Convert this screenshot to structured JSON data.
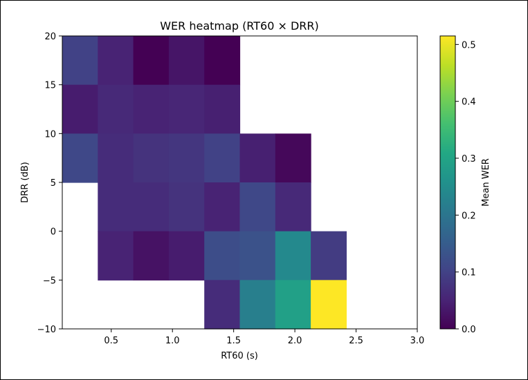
{
  "chart_data": {
    "type": "heatmap",
    "title": "WER heatmap (RT60 × DRR)",
    "xlabel": "RT60 (s)",
    "ylabel": "DRR (dB)",
    "colorbar_label": "Mean WER",
    "colormap": "viridis",
    "xlim": [
      0.1,
      3.0
    ],
    "ylim": [
      -10,
      20
    ],
    "clim": [
      0.0,
      0.515
    ],
    "x_ticks": [
      0.5,
      1.0,
      1.5,
      2.0,
      2.5,
      3.0
    ],
    "x_tick_labels": [
      "0.5",
      "1.0",
      "1.5",
      "2.0",
      "2.5",
      "3.0"
    ],
    "y_ticks": [
      -10,
      -5,
      0,
      5,
      10,
      15,
      20
    ],
    "y_tick_labels": [
      "−10",
      "−5",
      "0",
      "5",
      "10",
      "15",
      "20"
    ],
    "colorbar_ticks": [
      0.0,
      0.1,
      0.2,
      0.3,
      0.4,
      0.5
    ],
    "colorbar_tick_labels": [
      "0.0",
      "0.1",
      "0.2",
      "0.3",
      "0.4",
      "0.5"
    ],
    "x_bin_edges": [
      0.1,
      0.39,
      0.68,
      0.97,
      1.26,
      1.55,
      1.84,
      2.13,
      2.42,
      2.71,
      3.0
    ],
    "y_bin_edges": [
      -10,
      -5,
      0,
      5,
      10,
      15,
      20
    ],
    "cells": [
      {
        "x_bin": 0,
        "y_bin": 5,
        "value": 0.1
      },
      {
        "x_bin": 1,
        "y_bin": 5,
        "value": 0.05
      },
      {
        "x_bin": 2,
        "y_bin": 5,
        "value": 0.0
      },
      {
        "x_bin": 3,
        "y_bin": 5,
        "value": 0.03
      },
      {
        "x_bin": 4,
        "y_bin": 5,
        "value": 0.0
      },
      {
        "x_bin": 0,
        "y_bin": 4,
        "value": 0.04
      },
      {
        "x_bin": 1,
        "y_bin": 4,
        "value": 0.06
      },
      {
        "x_bin": 2,
        "y_bin": 4,
        "value": 0.05
      },
      {
        "x_bin": 3,
        "y_bin": 4,
        "value": 0.055
      },
      {
        "x_bin": 4,
        "y_bin": 4,
        "value": 0.045
      },
      {
        "x_bin": 0,
        "y_bin": 3,
        "value": 0.11
      },
      {
        "x_bin": 1,
        "y_bin": 3,
        "value": 0.065
      },
      {
        "x_bin": 2,
        "y_bin": 3,
        "value": 0.075
      },
      {
        "x_bin": 3,
        "y_bin": 3,
        "value": 0.08
      },
      {
        "x_bin": 4,
        "y_bin": 3,
        "value": 0.1
      },
      {
        "x_bin": 5,
        "y_bin": 3,
        "value": 0.045
      },
      {
        "x_bin": 6,
        "y_bin": 3,
        "value": 0.01
      },
      {
        "x_bin": 1,
        "y_bin": 2,
        "value": 0.065
      },
      {
        "x_bin": 2,
        "y_bin": 2,
        "value": 0.065
      },
      {
        "x_bin": 3,
        "y_bin": 2,
        "value": 0.075
      },
      {
        "x_bin": 4,
        "y_bin": 2,
        "value": 0.05
      },
      {
        "x_bin": 5,
        "y_bin": 2,
        "value": 0.11
      },
      {
        "x_bin": 6,
        "y_bin": 2,
        "value": 0.06
      },
      {
        "x_bin": 1,
        "y_bin": 1,
        "value": 0.05
      },
      {
        "x_bin": 2,
        "y_bin": 1,
        "value": 0.025
      },
      {
        "x_bin": 3,
        "y_bin": 1,
        "value": 0.04
      },
      {
        "x_bin": 4,
        "y_bin": 1,
        "value": 0.12
      },
      {
        "x_bin": 5,
        "y_bin": 1,
        "value": 0.13
      },
      {
        "x_bin": 6,
        "y_bin": 1,
        "value": 0.24
      },
      {
        "x_bin": 7,
        "y_bin": 1,
        "value": 0.09
      },
      {
        "x_bin": 4,
        "y_bin": 0,
        "value": 0.065
      },
      {
        "x_bin": 5,
        "y_bin": 0,
        "value": 0.22
      },
      {
        "x_bin": 6,
        "y_bin": 0,
        "value": 0.29
      },
      {
        "x_bin": 7,
        "y_bin": 0,
        "value": 0.515
      }
    ]
  }
}
